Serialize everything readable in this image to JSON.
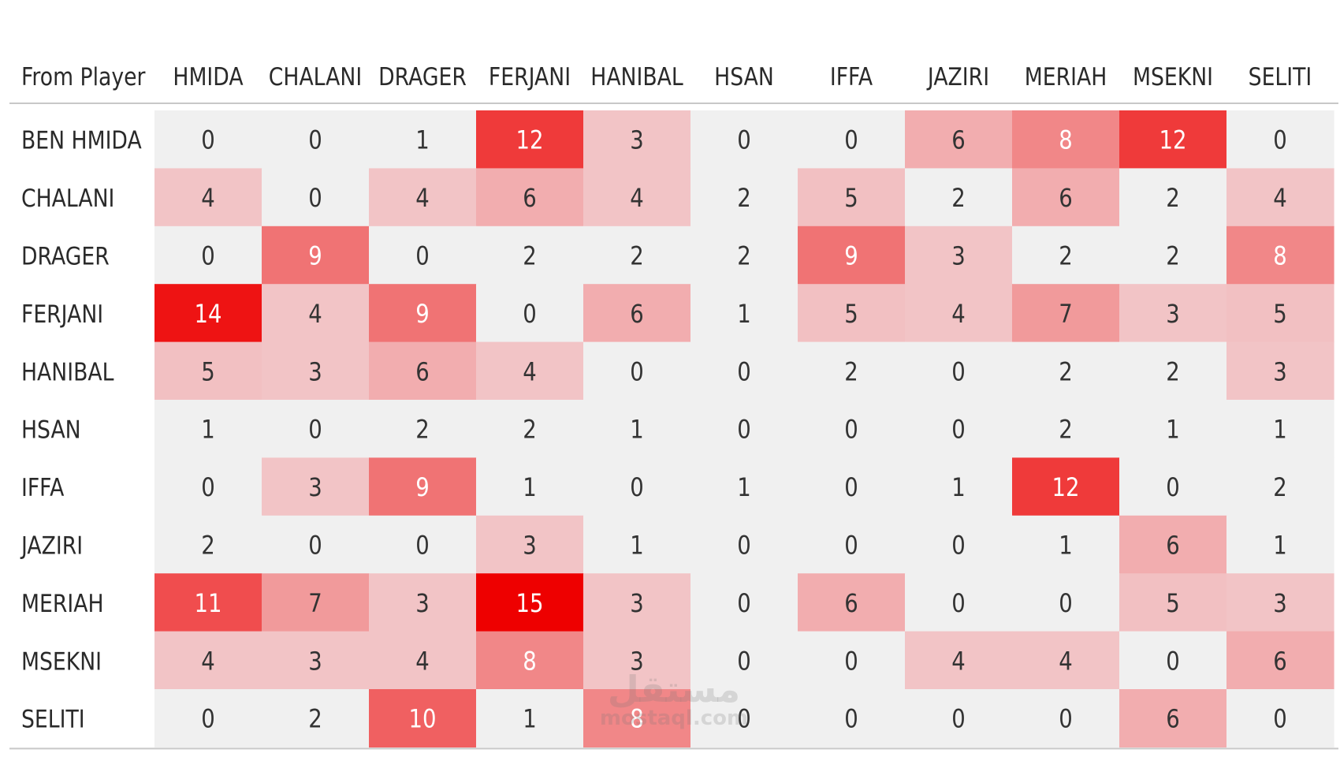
{
  "watermark": {
    "arabic": "مستقل",
    "latin": "mostaql.com"
  },
  "chart_data": {
    "type": "heatmap",
    "row_header": "From Player",
    "columns": [
      "HMIDA",
      "CHALANI",
      "DRAGER",
      "FERJANI",
      "HANIBAL",
      "HSAN",
      "IFFA",
      "JAZIRI",
      "MERIAH",
      "MSEKNI",
      "SELITI"
    ],
    "rows": [
      "BEN HMIDA",
      "CHALANI",
      "DRAGER",
      "FERJANI",
      "HANIBAL",
      "HSAN",
      "IFFA",
      "JAZIRI",
      "MERIAH",
      "MSEKNI",
      "SELITI"
    ],
    "values": [
      [
        0,
        0,
        1,
        12,
        3,
        0,
        0,
        6,
        8,
        12,
        0
      ],
      [
        4,
        0,
        4,
        6,
        4,
        2,
        5,
        2,
        6,
        2,
        4
      ],
      [
        0,
        9,
        0,
        2,
        2,
        2,
        9,
        3,
        2,
        2,
        8
      ],
      [
        14,
        4,
        9,
        0,
        6,
        1,
        5,
        4,
        7,
        3,
        5
      ],
      [
        5,
        3,
        6,
        4,
        0,
        0,
        2,
        0,
        2,
        2,
        3
      ],
      [
        1,
        0,
        2,
        2,
        1,
        0,
        0,
        0,
        2,
        1,
        1
      ],
      [
        0,
        3,
        9,
        1,
        0,
        1,
        0,
        1,
        12,
        0,
        2
      ],
      [
        2,
        0,
        0,
        3,
        1,
        0,
        0,
        0,
        1,
        6,
        1
      ],
      [
        11,
        7,
        3,
        15,
        3,
        0,
        6,
        0,
        0,
        5,
        3
      ],
      [
        4,
        3,
        4,
        8,
        3,
        0,
        0,
        4,
        4,
        0,
        6
      ],
      [
        0,
        2,
        10,
        1,
        8,
        0,
        0,
        0,
        0,
        6,
        0
      ]
    ],
    "color_scale": {
      "low": "#f0f0f0",
      "mid": "#f2c4c6",
      "high": "#ee0000"
    }
  }
}
